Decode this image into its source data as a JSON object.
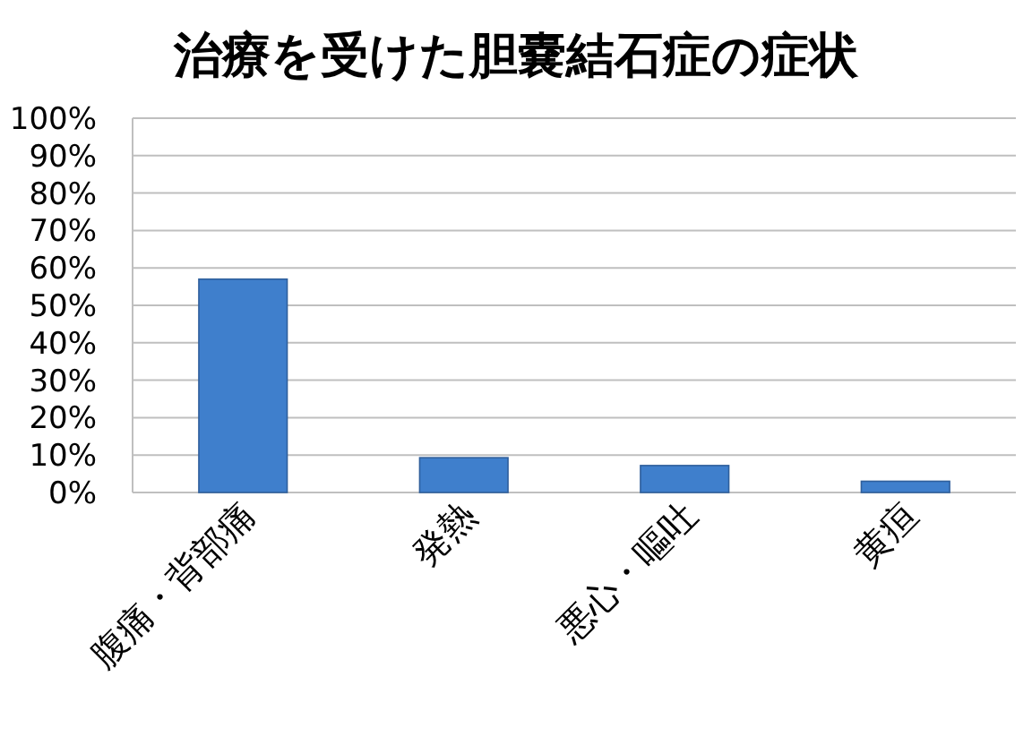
{
  "chart_data": {
    "type": "bar",
    "title": "治療を受けた胆嚢結石症の症状",
    "categories": [
      "腹痛・背部痛",
      "発熱",
      "悪心・嘔吐",
      "黄疸"
    ],
    "values": [
      57,
      9.3,
      7.2,
      3
    ],
    "color": "#3f7fcc",
    "ylim": [
      0,
      100
    ],
    "yticks": [
      {
        "value": 0,
        "label": "0%"
      },
      {
        "value": 10,
        "label": "10%"
      },
      {
        "value": 20,
        "label": "20%"
      },
      {
        "value": 30,
        "label": "30%"
      },
      {
        "value": 40,
        "label": "40%"
      },
      {
        "value": 50,
        "label": "50%"
      },
      {
        "value": 60,
        "label": "60%"
      },
      {
        "value": 70,
        "label": "70%"
      },
      {
        "value": 80,
        "label": "80%"
      },
      {
        "value": 90,
        "label": "90%"
      },
      {
        "value": 100,
        "label": "100%"
      }
    ],
    "grid": "y"
  }
}
